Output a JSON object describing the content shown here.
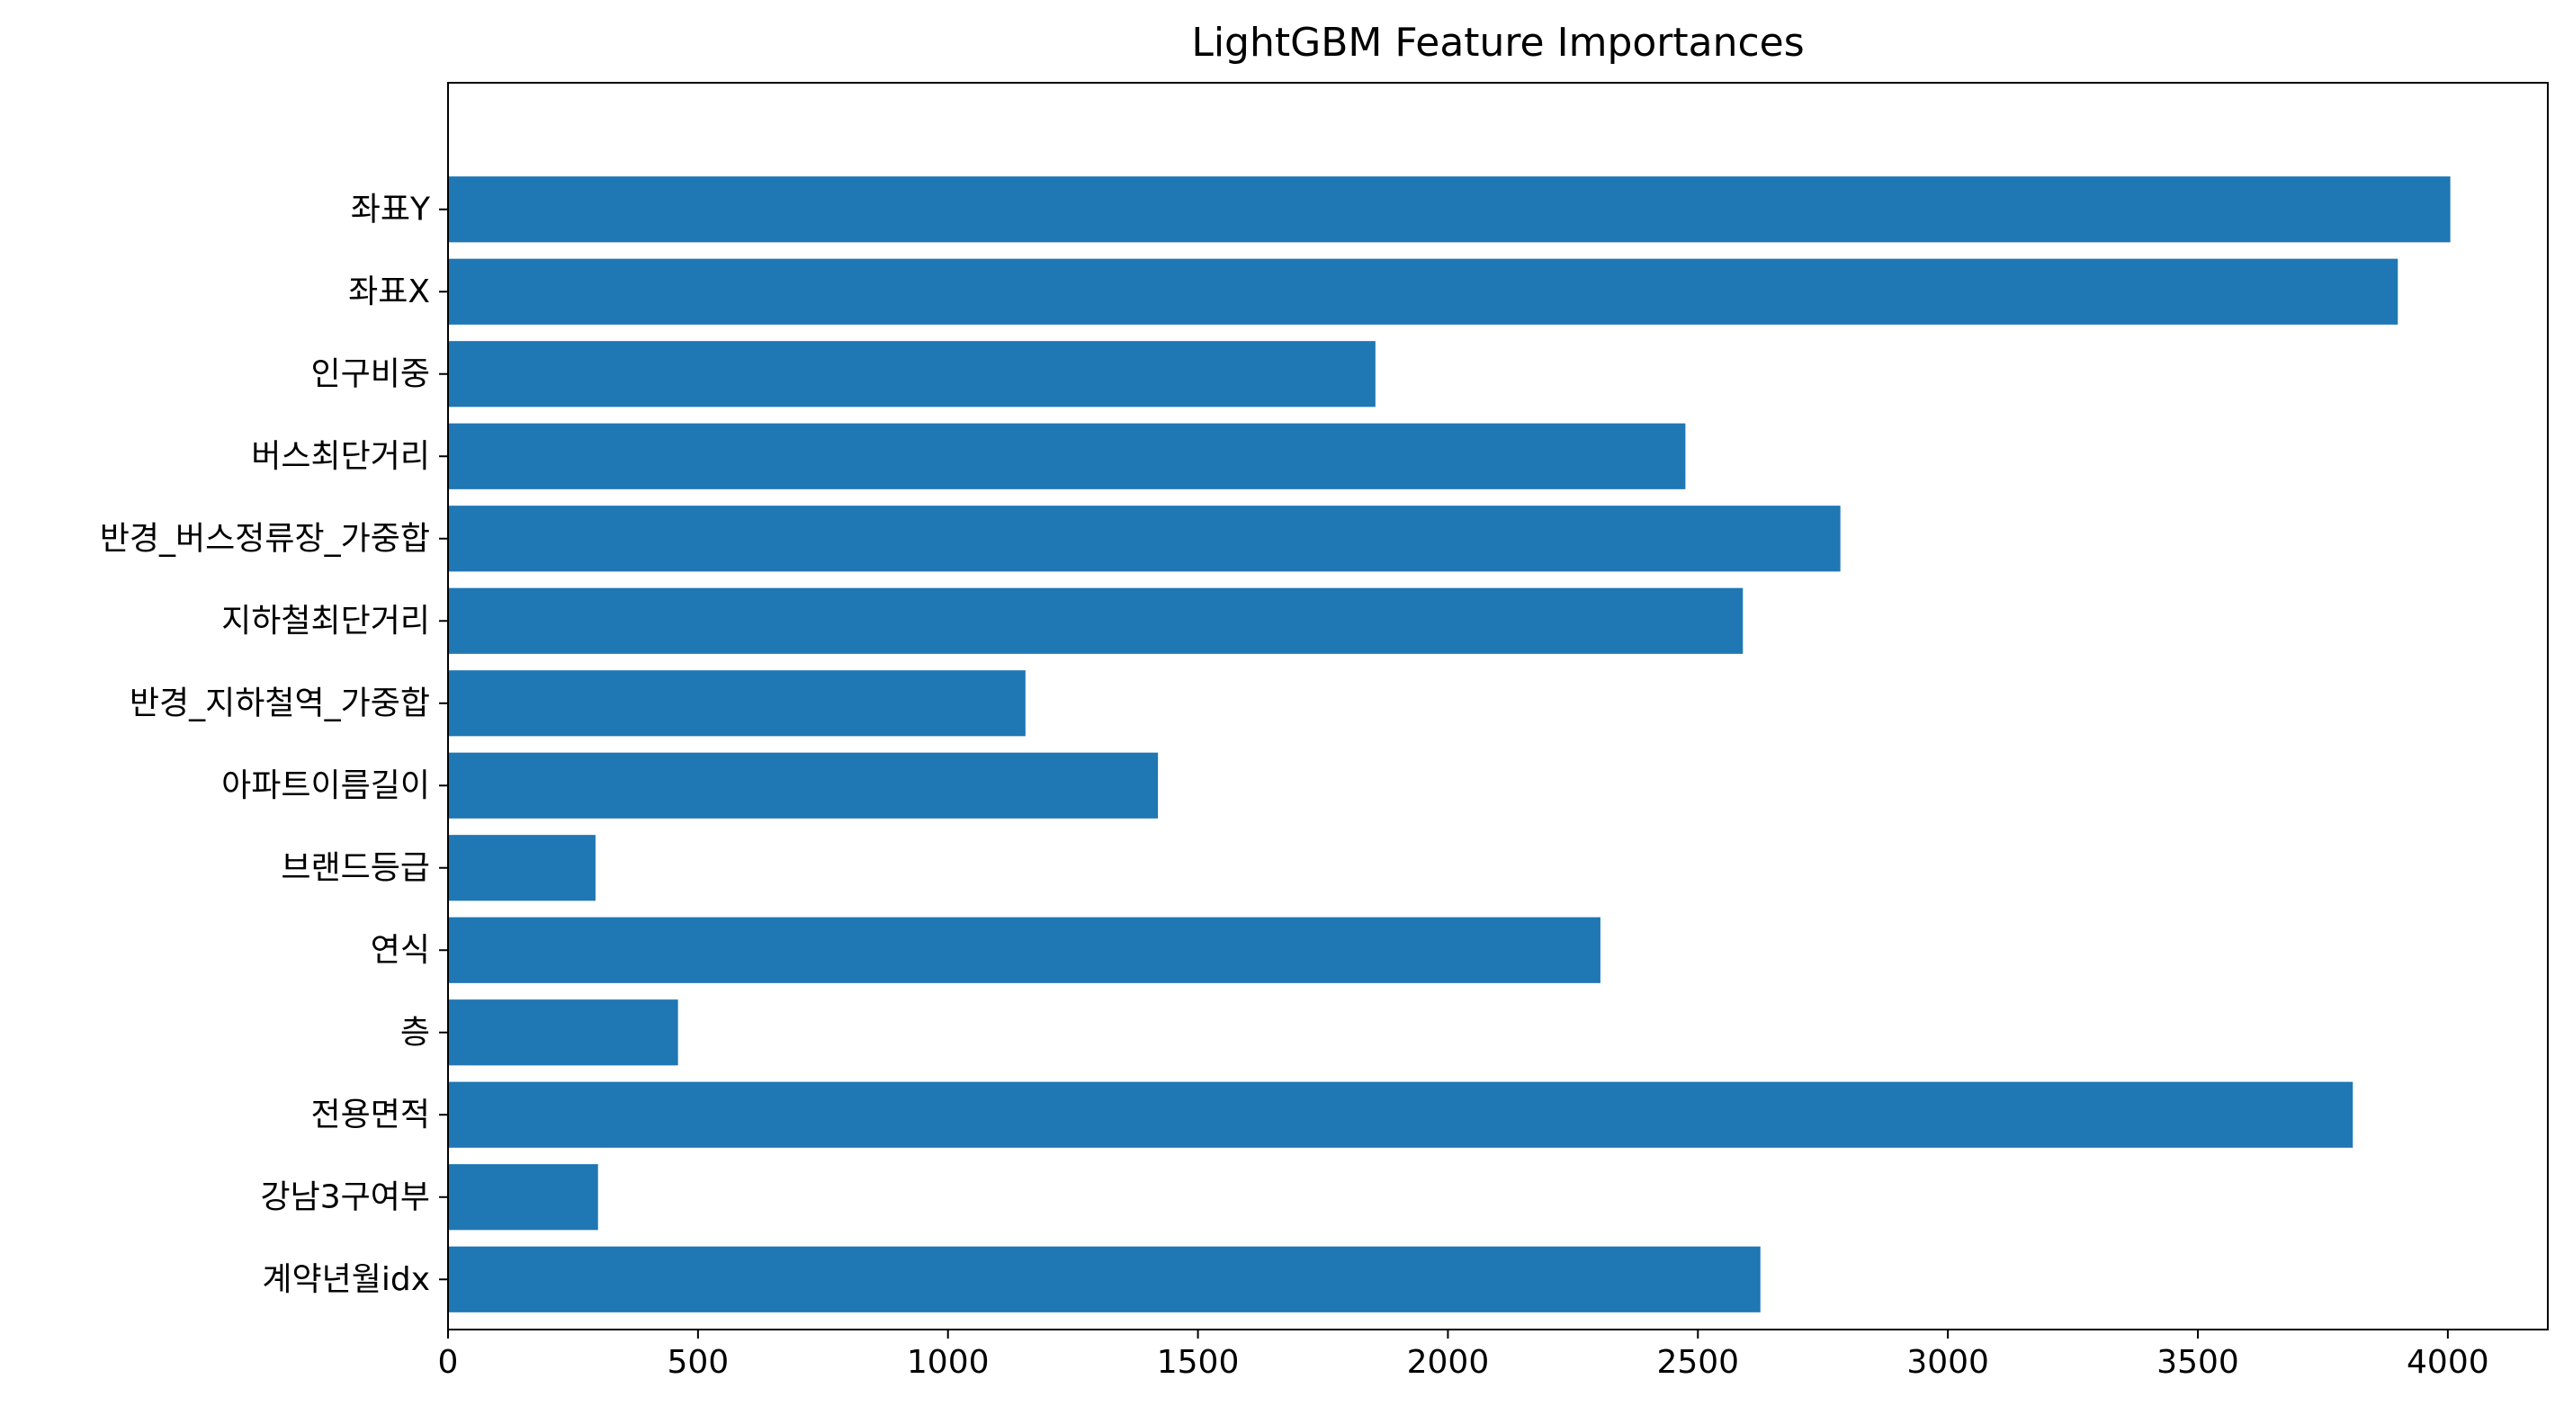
{
  "chart_data": {
    "type": "bar",
    "orientation": "horizontal",
    "title": "LightGBM Feature Importances",
    "xlabel": "",
    "ylabel": "",
    "xlim": [
      0,
      4200
    ],
    "xticks": [
      0,
      500,
      1000,
      1500,
      2000,
      2500,
      3000,
      3500,
      4000
    ],
    "grid": false,
    "bar_color": "#1f77b4",
    "categories": [
      "좌표Y",
      "좌표X",
      "인구비중",
      "버스최단거리",
      "반경_버스정류장_가중합",
      "지하철최단거리",
      "반경_지하철역_가중합",
      "아파트이름길이",
      "브랜드등급",
      "연식",
      "층",
      "전용면적",
      "강남3구여부",
      "계약년월idx"
    ],
    "values": [
      4005,
      3900,
      1855,
      2475,
      2785,
      2590,
      1155,
      1420,
      295,
      2305,
      460,
      3810,
      300,
      2625
    ]
  }
}
